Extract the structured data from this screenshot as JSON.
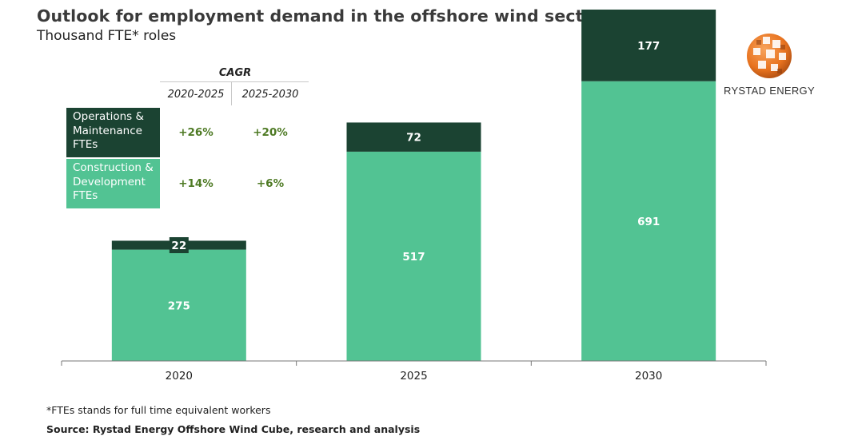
{
  "title": "Outlook for employment demand in the offshore wind sector",
  "subtitle": "Thousand FTE* roles",
  "logo": {
    "text": "RYSTAD ENERGY",
    "icon": "rystad-globe-icon"
  },
  "cagr": {
    "header": "CAGR",
    "periods": [
      "2020-2025",
      "2025-2030"
    ],
    "rows": [
      {
        "label_lines": [
          "Operations &",
          "Maintenance",
          "FTEs"
        ],
        "values": [
          "+26%",
          "+20%"
        ]
      },
      {
        "label_lines": [
          "Construction &",
          "Development",
          "FTEs"
        ],
        "values": [
          "+14%",
          "+6%"
        ]
      }
    ]
  },
  "colors": {
    "om": "#1b4332",
    "cd": "#52c393",
    "cagr_text": "#4e7a24"
  },
  "chart_data": {
    "type": "bar",
    "stacked": true,
    "categories": [
      "2020",
      "2025",
      "2030"
    ],
    "series": [
      {
        "name": "Construction & Development FTEs",
        "values": [
          275,
          517,
          691
        ],
        "labels": [
          "275",
          "517",
          "691"
        ]
      },
      {
        "name": "Operations & Maintenance FTEs",
        "values": [
          22,
          72,
          177
        ],
        "labels": [
          "22",
          "72",
          "177"
        ]
      }
    ],
    "ylabel": "Thousand FTE* roles",
    "ylim": [
      0,
      868
    ],
    "grid": false
  },
  "footnote": "*FTEs stands for full time equivalent workers",
  "source": "Source: Rystad Energy Offshore Wind Cube, research and analysis"
}
